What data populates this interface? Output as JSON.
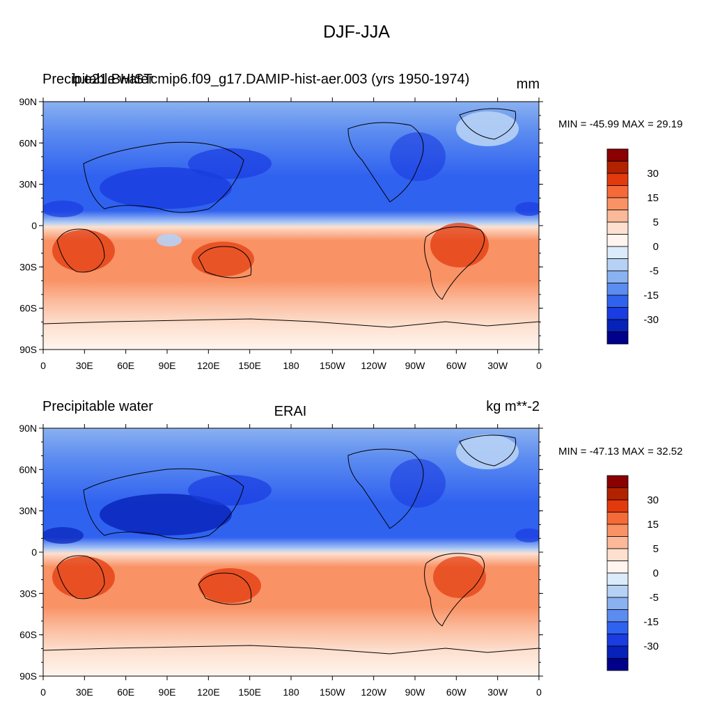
{
  "title": "DJF-JJA",
  "panels": [
    {
      "left_label": "Precipitable water",
      "center_label": "b.e21.BHISTcmip6.f09_g17.DAMIP-hist-aer.003 (yrs 1950-1974)",
      "units": "mm",
      "stats": "MIN = -45.99 MAX =  29.19"
    },
    {
      "left_label": "Precipitable water",
      "center_label": "ERAI",
      "units": "kg m**-2",
      "stats": "MIN = -47.13 MAX =  32.52"
    }
  ],
  "lat_ticks": [
    "90N",
    "60N",
    "30N",
    "0",
    "30S",
    "60S",
    "90S"
  ],
  "lon_ticks": [
    "0",
    "30E",
    "60E",
    "90E",
    "120E",
    "150E",
    "180",
    "150W",
    "120W",
    "90W",
    "60W",
    "30W",
    "0"
  ],
  "colorbar": {
    "labels": [
      "30",
      "15",
      "5",
      "0",
      "-5",
      "-15",
      "-30"
    ],
    "colors": [
      "#8b0000",
      "#b22200",
      "#e23a0d",
      "#f56a38",
      "#f99265",
      "#fbb99a",
      "#fde0cf",
      "#fff5ee",
      "#dcebfb",
      "#b7d1f5",
      "#8ab1f0",
      "#5c8cf0",
      "#3062f0",
      "#1a3ce0",
      "#0722b8",
      "#00008b"
    ]
  }
}
